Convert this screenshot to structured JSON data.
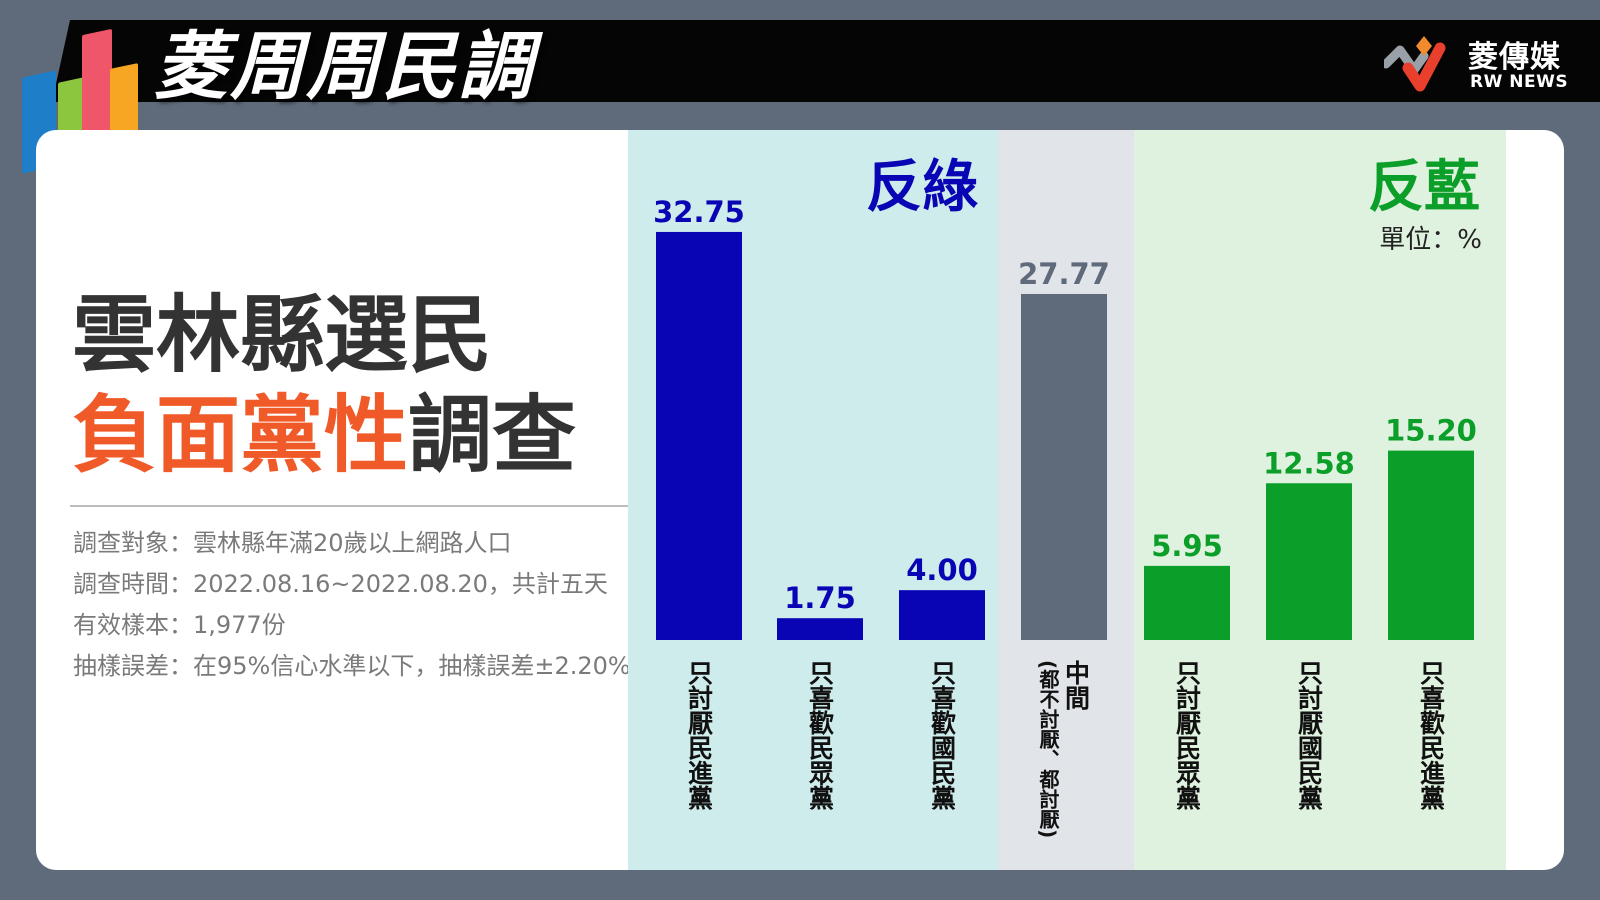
{
  "header": {
    "title": "菱周周民調",
    "brand_name": "菱傳媒",
    "brand_en": "RW NEWS"
  },
  "main": {
    "title_line1": "雲林縣選民",
    "title_line2_highlight": "負面黨性",
    "title_line2_rest": "調查",
    "info": [
      "調查對象：雲林縣年滿20歲以上網路人口",
      "調查時間：2022.08.16~2022.08.20，共計五天",
      "有效樣本：1,977份",
      "抽樣誤差：在95%信心水準以下，抽樣誤差±2.20%"
    ]
  },
  "colors": {
    "anti_green_bg": "#cfecec",
    "middle_bg": "#e1e4e8",
    "anti_blue_bg": "#dff2df",
    "blue_bar": "#0a05b4",
    "gray_bar": "#5f6b7b",
    "green_bar": "#0b9e28",
    "accent_orange": "#f05a28"
  },
  "chart_data": {
    "type": "bar",
    "unit": "單位：%",
    "groups": [
      {
        "label": "反綠",
        "color": "#0a05b4",
        "categories": [
          "只討厭民進黨",
          "只喜歡民眾黨",
          "只喜歡國民黨"
        ],
        "values": [
          32.75,
          1.75,
          4.0
        ]
      },
      {
        "label": "",
        "color": "#5f6b7b",
        "categories": [
          "中間(都不討厭、都討厭)"
        ],
        "values": [
          27.77
        ]
      },
      {
        "label": "反藍",
        "color": "#0b9e28",
        "categories": [
          "只討厭民眾黨",
          "只討厭國民黨",
          "只喜歡民進黨"
        ],
        "values": [
          5.95,
          12.58,
          15.2
        ]
      }
    ],
    "categories": [
      "只討厭民進黨",
      "只喜歡民眾黨",
      "只喜歡國民黨",
      "中間",
      "只討厭民眾黨",
      "只討厭國民黨",
      "只喜歡民進黨"
    ],
    "category_notes": [
      "",
      "",
      "",
      "(都不討厭、都討厭)",
      "",
      "",
      ""
    ],
    "value_labels": [
      "32.75",
      "1.75",
      "4.00",
      "27.77",
      "5.95",
      "12.58",
      "15.20"
    ],
    "values": [
      32.75,
      1.75,
      4.0,
      27.77,
      5.95,
      12.58,
      15.2
    ],
    "bar_colors": [
      "#0a05b4",
      "#0a05b4",
      "#0a05b4",
      "#5f6b7b",
      "#0b9e28",
      "#0b9e28",
      "#0b9e28"
    ],
    "ylim": [
      0,
      35
    ]
  }
}
